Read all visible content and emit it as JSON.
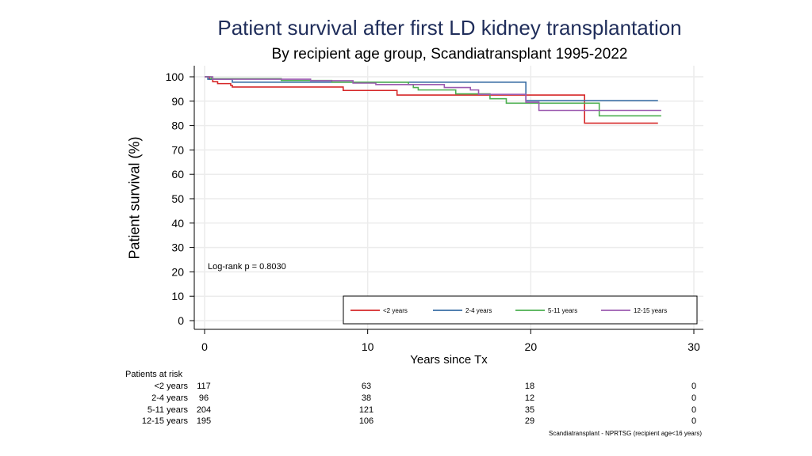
{
  "chart_data": {
    "type": "line",
    "title": "Patient survival after first LD kidney transplantation",
    "subtitle": "By recipient age group, Scandiatransplant 1995-2022",
    "xlabel": "Years since Tx",
    "ylabel": "Patient survival (%)",
    "xlim": [
      0,
      30
    ],
    "ylim": [
      0,
      100
    ],
    "xticks": [
      0,
      10,
      20,
      30
    ],
    "yticks": [
      0,
      10,
      20,
      30,
      40,
      50,
      60,
      70,
      80,
      90,
      100
    ],
    "grid": true,
    "annotation": "Log-rank p = 0.8030",
    "legend_position": "bottom-right",
    "series": [
      {
        "name": "<2 years",
        "color": "#d62728",
        "points": [
          [
            0,
            100
          ],
          [
            0.3,
            99
          ],
          [
            0.5,
            98
          ],
          [
            0.8,
            97.2
          ],
          [
            1.6,
            96.5
          ],
          [
            1.7,
            95.8
          ],
          [
            8.4,
            95.8
          ],
          [
            8.5,
            94.4
          ],
          [
            11.7,
            94.4
          ],
          [
            11.8,
            92.5
          ],
          [
            23.2,
            92.5
          ],
          [
            23.3,
            81
          ],
          [
            27.8,
            81
          ]
        ]
      },
      {
        "name": "2-4 years",
        "color": "#3a6ea5",
        "points": [
          [
            0,
            100
          ],
          [
            0.2,
            99
          ],
          [
            1.5,
            99
          ],
          [
            1.7,
            97.8
          ],
          [
            19.6,
            97.8
          ],
          [
            19.7,
            90.2
          ],
          [
            27.8,
            90.2
          ]
        ]
      },
      {
        "name": "5-11 years",
        "color": "#4caf50",
        "points": [
          [
            0,
            100
          ],
          [
            0.4,
            99.2
          ],
          [
            4.6,
            99.2
          ],
          [
            4.7,
            98.5
          ],
          [
            7.7,
            98.5
          ],
          [
            7.8,
            97.8
          ],
          [
            12.4,
            97.8
          ],
          [
            12.5,
            96.8
          ],
          [
            12.7,
            96.8
          ],
          [
            12.8,
            95.6
          ],
          [
            13.0,
            95.6
          ],
          [
            13.1,
            94.6
          ],
          [
            15.3,
            94.6
          ],
          [
            15.4,
            93.0
          ],
          [
            17.4,
            93.0
          ],
          [
            17.5,
            91.0
          ],
          [
            18.4,
            91.0
          ],
          [
            18.5,
            89.2
          ],
          [
            23.8,
            89.2
          ],
          [
            24.2,
            84.0
          ],
          [
            28.0,
            84.0
          ]
        ]
      },
      {
        "name": "12-15 years",
        "color": "#9c5bb0",
        "points": [
          [
            0,
            100
          ],
          [
            0.5,
            99
          ],
          [
            6.4,
            99
          ],
          [
            6.5,
            98.4
          ],
          [
            9.0,
            98.4
          ],
          [
            9.1,
            97.4
          ],
          [
            10.4,
            97.4
          ],
          [
            10.5,
            96.8
          ],
          [
            14.6,
            96.8
          ],
          [
            14.7,
            95.6
          ],
          [
            16.2,
            95.6
          ],
          [
            16.3,
            94.6
          ],
          [
            16.7,
            94.6
          ],
          [
            16.8,
            92.8
          ],
          [
            19.6,
            92.8
          ],
          [
            19.7,
            89.6
          ],
          [
            20.4,
            89.6
          ],
          [
            20.5,
            86.2
          ],
          [
            28.0,
            86.2
          ]
        ]
      }
    ]
  },
  "risk_table": {
    "title": "Patients at risk",
    "times": [
      0,
      10,
      20,
      30
    ],
    "rows": [
      {
        "label": "<2 years",
        "values": [
          "117",
          "63",
          "18",
          "0"
        ]
      },
      {
        "label": "2-4 years",
        "values": [
          "96",
          "38",
          "12",
          "0"
        ]
      },
      {
        "label": "5-11 years",
        "values": [
          "204",
          "121",
          "35",
          "0"
        ]
      },
      {
        "label": "12-15 years",
        "values": [
          "195",
          "106",
          "29",
          "0"
        ]
      }
    ]
  },
  "footnote": "Scandiatransplant - NPRTSG (recipient age<16 years)"
}
